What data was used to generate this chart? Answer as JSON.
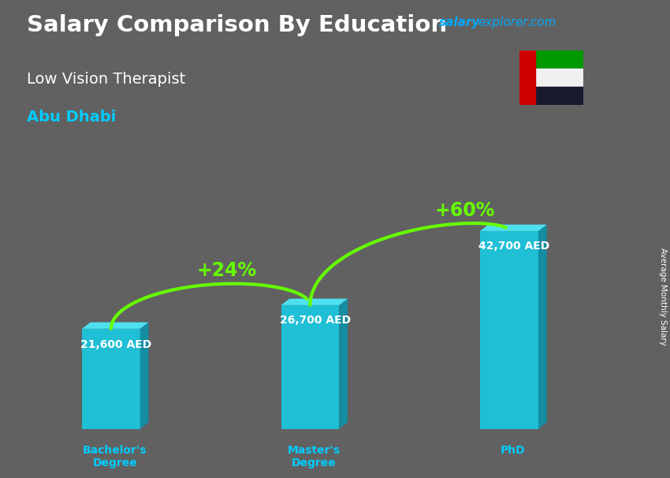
{
  "title_main": "Salary Comparison By Education",
  "title_sub": "Low Vision Therapist",
  "title_city": "Abu Dhabi",
  "watermark_salary": "salary",
  "watermark_explorer": "explorer",
  "watermark_com": ".com",
  "ylabel": "Average Monthly Salary",
  "categories": [
    "Bachelor's\nDegree",
    "Master's\nDegree",
    "PhD"
  ],
  "values": [
    21600,
    26700,
    42700
  ],
  "value_labels": [
    "21,600 AED",
    "26,700 AED",
    "42,700 AED"
  ],
  "pct_labels": [
    "+24%",
    "+60%"
  ],
  "bar_color_front": "#1ac8e0",
  "bar_color_top": "#4de8f8",
  "bar_color_side": "#0e90a8",
  "arrow_color": "#66ff00",
  "title_color": "#ffffff",
  "sub_title_color": "#ffffff",
  "city_color": "#00ccff",
  "value_label_color": "#ffffff",
  "xtick_color": "#00ccff",
  "bg_color": "#616161",
  "watermark_salary_color": "#00aaff",
  "watermark_explorer_color": "#00aaff",
  "watermark_com_color": "#00aaff",
  "figsize": [
    8.5,
    6.06
  ],
  "dpi": 100,
  "max_val": 50000,
  "x_positions": [
    1.0,
    2.3,
    3.6
  ],
  "bar_width": 0.38,
  "xlim": [
    0.45,
    4.3
  ],
  "ylim": [
    -0.13,
    1.15
  ]
}
